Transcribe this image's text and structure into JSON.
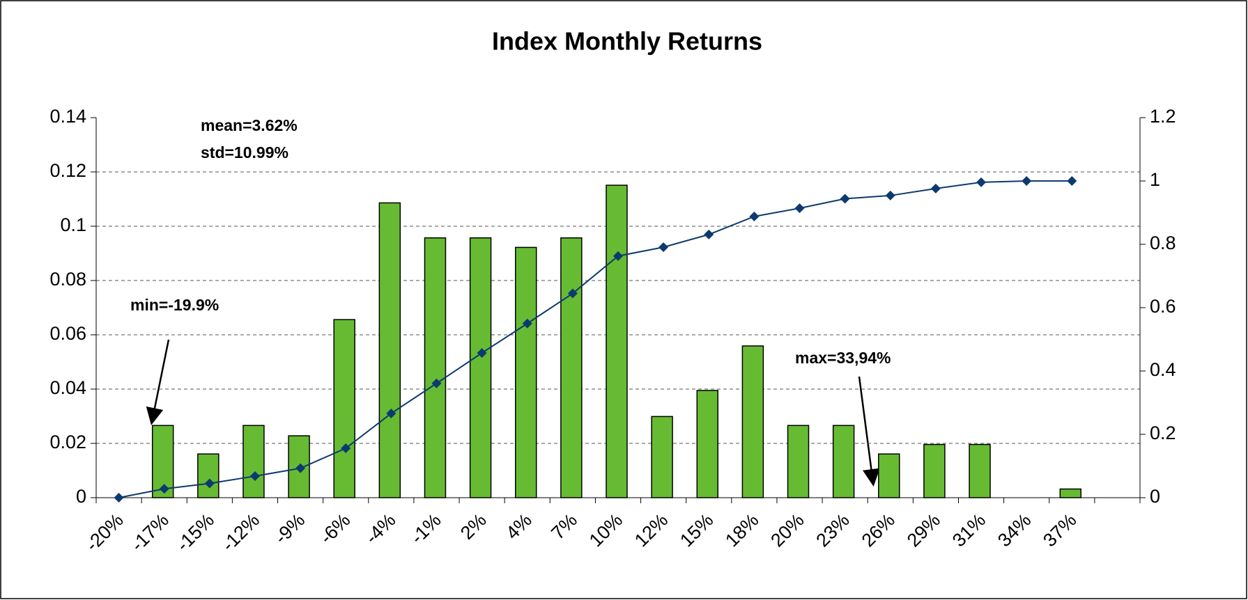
{
  "chart_data": {
    "type": "bar_line",
    "title": "Index Monthly Returns",
    "categories": [
      "-20%",
      "-17%",
      "-15%",
      "-12%",
      "-9%",
      "-6%",
      "-4%",
      "-1%",
      "2%",
      "4%",
      "7%",
      "10%",
      "12%",
      "15%",
      "18%",
      "20%",
      "23%",
      "26%",
      "29%",
      "31%",
      "34%",
      "37%"
    ],
    "series": [
      {
        "type": "bar",
        "color": "#66bb33",
        "values": [
          0,
          0.0266,
          0.0161,
          0.0266,
          0.0228,
          0.0656,
          0.1086,
          0.0957,
          0.0957,
          0.0922,
          0.0957,
          0.1151,
          0.0299,
          0.0395,
          0.0559,
          0.0266,
          0.0266,
          0.0161,
          0.0196,
          0.0196,
          0,
          0.0032
        ]
      },
      {
        "type": "line",
        "axis": "y2",
        "color": "#0d3a6e",
        "values": [
          0,
          0.028,
          0.045,
          0.068,
          0.093,
          0.156,
          0.266,
          0.361,
          0.457,
          0.55,
          0.645,
          0.763,
          0.791,
          0.831,
          0.888,
          0.914,
          0.944,
          0.954,
          0.976,
          0.996,
          1,
          1
        ]
      }
    ],
    "ylim": [
      0,
      0.14
    ],
    "yticks": [
      0,
      0.02,
      0.04,
      0.06,
      0.08,
      0.1,
      0.12,
      0.14
    ],
    "y2lim": [
      0,
      1.2
    ],
    "y2ticks": [
      0,
      0.2,
      0.4,
      0.6,
      0.8,
      1,
      1.2
    ],
    "grid": true,
    "annotations": [
      "mean=3.62%",
      "std=10.99%",
      "min=-19.9%",
      "max=33,94%"
    ]
  }
}
